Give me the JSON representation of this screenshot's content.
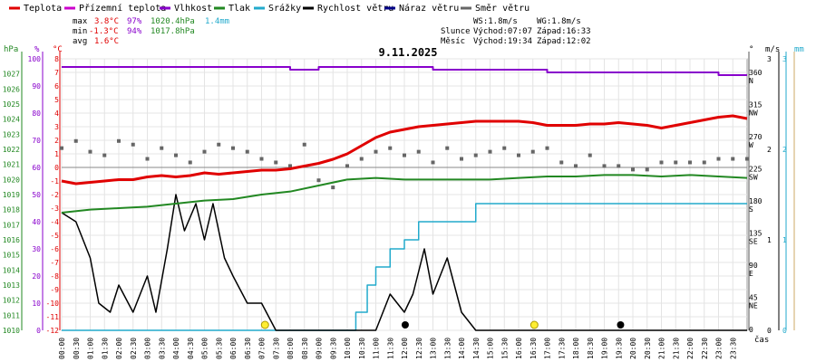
{
  "chart_data": {
    "type": "line",
    "title": "9.11.2025",
    "xlabel": "čas",
    "legend": [
      {
        "label": "Teplota",
        "color": "#e00000"
      },
      {
        "label": "Přízemní teplota",
        "color": "#cc00cc"
      },
      {
        "label": "Vlhkost",
        "color": "#8800cc"
      },
      {
        "label": "Tlak",
        "color": "#228822"
      },
      {
        "label": "Srážky",
        "color": "#22aacc"
      },
      {
        "label": "Rychlost větru",
        "color": "#000000"
      },
      {
        "label": "Náraz větru",
        "color": "#000088"
      },
      {
        "label": "Směr větru",
        "color": "#666666"
      }
    ],
    "stats": {
      "max": {
        "label": "max",
        "temp": "3.8°C",
        "hum": "97%",
        "press": "1020.4hPa",
        "rain": "1.4mm"
      },
      "min": {
        "label": "min",
        "temp": "-1.3°C",
        "hum": "94%",
        "press": "1017.8hPa"
      },
      "avg": {
        "label": "avg",
        "temp": "1.6°C"
      }
    },
    "info": {
      "ws": "WS:1.8m/s",
      "wg": "WG:1.8m/s",
      "sun_label": "Slunce",
      "sunrise": "Východ:07:07",
      "sunset": "Západ:16:33",
      "moon_label": "Měsíc",
      "moonrise": "Východ:19:34",
      "moonset": "Západ:12:02"
    },
    "axes": {
      "press_unit": "hPa",
      "hum_unit": "%",
      "temp_unit": "°C",
      "dir_unit": "°",
      "wind_unit": "m/s",
      "rain_unit": "mm",
      "press_range": [
        1010,
        1028
      ],
      "hum_range": [
        0,
        100
      ],
      "temp_range": [
        -12,
        8
      ],
      "dir_range": [
        0,
        380
      ],
      "wind_range": [
        0,
        3
      ],
      "rain_range": [
        0,
        3
      ],
      "temp_ticks": [
        8,
        7,
        6,
        5,
        4,
        3,
        2,
        1,
        0,
        -1,
        -2,
        -3,
        -4,
        -5,
        -6,
        -7,
        -8,
        -9,
        -10,
        -11,
        -12
      ],
      "hum_ticks": [
        100,
        90,
        80,
        70,
        60,
        50,
        40,
        30,
        20,
        10,
        0
      ],
      "press_ticks": [
        1027,
        1026,
        1025,
        1024,
        1023,
        1022,
        1021,
        1020,
        1019,
        1018,
        1017,
        1016,
        1015,
        1014,
        1013,
        1012,
        1011,
        1010
      ],
      "dir_ticks": [
        {
          "deg": 360,
          "num": "360",
          "lbl": "N"
        },
        {
          "deg": 315,
          "num": "315",
          "lbl": "NW"
        },
        {
          "deg": 270,
          "num": "270",
          "lbl": "W"
        },
        {
          "deg": 225,
          "num": "225",
          "lbl": "SW"
        },
        {
          "deg": 180,
          "num": "180",
          "lbl": "S"
        },
        {
          "deg": 135,
          "num": "135",
          "lbl": "SE"
        },
        {
          "deg": 90,
          "num": "90",
          "lbl": "E"
        },
        {
          "deg": 45,
          "num": "45",
          "lbl": "NE"
        },
        {
          "deg": 0,
          "num": "0",
          "lbl": ""
        }
      ],
      "wind_ticks": [
        3,
        2,
        1,
        0
      ],
      "rain_ticks": [
        3,
        2,
        1,
        0
      ],
      "time_labels": [
        "00:00",
        "00:30",
        "01:00",
        "01:30",
        "02:00",
        "02:30",
        "03:00",
        "03:30",
        "04:00",
        "04:30",
        "05:00",
        "05:30",
        "06:00",
        "06:30",
        "07:00",
        "07:30",
        "08:00",
        "08:30",
        "09:00",
        "09:30",
        "10:00",
        "10:30",
        "11:00",
        "11:30",
        "12:00",
        "12:30",
        "13:00",
        "13:30",
        "14:00",
        "14:30",
        "15:00",
        "15:30",
        "16:00",
        "16:30",
        "17:00",
        "17:30",
        "18:00",
        "18:30",
        "19:00",
        "19:30",
        "20:00",
        "20:30",
        "21:00",
        "21:30",
        "22:00",
        "22:30",
        "23:00",
        "23:30"
      ]
    },
    "series": {
      "temperature": {
        "name": "Teplota",
        "unit": "°C",
        "x": [
          0,
          0.5,
          1,
          1.5,
          2,
          2.5,
          3,
          3.5,
          4,
          4.5,
          5,
          5.5,
          6,
          6.5,
          7,
          7.5,
          8,
          8.5,
          9,
          9.5,
          10,
          10.5,
          11,
          11.5,
          12,
          12.5,
          13,
          13.5,
          14,
          14.5,
          15,
          15.5,
          16,
          16.5,
          17,
          17.5,
          18,
          18.5,
          19,
          19.5,
          20,
          20.5,
          21,
          21.5,
          22,
          22.5,
          23,
          23.5,
          24
        ],
        "y": [
          -1.0,
          -1.2,
          -1.1,
          -1.0,
          -0.9,
          -0.9,
          -0.7,
          -0.6,
          -0.7,
          -0.6,
          -0.4,
          -0.5,
          -0.4,
          -0.3,
          -0.2,
          -0.2,
          -0.1,
          0.1,
          0.3,
          0.6,
          1.0,
          1.6,
          2.2,
          2.6,
          2.8,
          3.0,
          3.1,
          3.2,
          3.3,
          3.4,
          3.4,
          3.4,
          3.4,
          3.3,
          3.1,
          3.1,
          3.1,
          3.2,
          3.2,
          3.3,
          3.2,
          3.1,
          2.9,
          3.1,
          3.3,
          3.5,
          3.7,
          3.8,
          3.6
        ]
      },
      "ground_temperature": {
        "name": "Přízemní teplota",
        "unit": "°C",
        "x": [],
        "y": []
      },
      "humidity": {
        "name": "Vlhkost",
        "unit": "%",
        "x": [
          0,
          1,
          2,
          3,
          4,
          5,
          6,
          7,
          8,
          9,
          10,
          11,
          12,
          13,
          14,
          15,
          16,
          17,
          18,
          19,
          20,
          21,
          22,
          23,
          24
        ],
        "y": [
          97,
          97,
          97,
          97,
          97,
          97,
          97,
          97,
          96,
          97,
          97,
          97,
          97,
          96,
          96,
          96,
          96,
          95,
          95,
          95,
          95,
          95,
          95,
          94,
          94
        ]
      },
      "pressure": {
        "name": "Tlak",
        "unit": "hPa",
        "x": [
          0,
          1,
          2,
          3,
          4,
          5,
          6,
          7,
          8,
          9,
          10,
          11,
          12,
          13,
          14,
          15,
          16,
          17,
          18,
          19,
          20,
          21,
          22,
          23,
          24
        ],
        "y": [
          1017.8,
          1018.0,
          1018.1,
          1018.2,
          1018.4,
          1018.6,
          1018.7,
          1019.0,
          1019.2,
          1019.6,
          1020.0,
          1020.1,
          1020.0,
          1020.0,
          1020.0,
          1020.0,
          1020.1,
          1020.2,
          1020.2,
          1020.3,
          1020.3,
          1020.2,
          1020.3,
          1020.2,
          1020.1
        ]
      },
      "rain": {
        "name": "Srážky",
        "unit": "mm",
        "x": [
          0,
          10,
          10.3,
          10.7,
          11.0,
          11.5,
          12.0,
          12.5,
          13.0,
          13.5,
          14.0,
          14.5,
          15,
          24
        ],
        "y": [
          0,
          0,
          0.2,
          0.5,
          0.7,
          0.9,
          1.0,
          1.2,
          1.2,
          1.2,
          1.2,
          1.4,
          1.4,
          1.4
        ]
      },
      "wind_speed": {
        "name": "Rychlost větru",
        "unit": "m/s",
        "x": [
          0,
          0.5,
          1,
          1.3,
          1.7,
          2,
          2.5,
          3,
          3.3,
          3.7,
          4,
          4.3,
          4.7,
          5,
          5.3,
          5.7,
          6,
          6.5,
          7,
          7.5,
          8,
          8.5,
          9,
          10,
          11,
          11.5,
          12,
          12.3,
          12.7,
          13,
          13.5,
          14,
          14.5,
          15,
          16,
          17,
          18,
          19,
          20,
          21,
          22,
          23,
          24
        ],
        "y": [
          1.3,
          1.2,
          0.8,
          0.3,
          0.2,
          0.5,
          0.2,
          0.6,
          0.2,
          0.9,
          1.5,
          1.1,
          1.4,
          1.0,
          1.4,
          0.8,
          0.6,
          0.3,
          0.3,
          0.0,
          0.0,
          0.0,
          0.0,
          0.0,
          0.0,
          0.4,
          0.2,
          0.4,
          0.9,
          0.4,
          0.8,
          0.2,
          0.0,
          0.0,
          0.0,
          0.0,
          0.0,
          0.0,
          0.0,
          0.0,
          0.0,
          0.0,
          0.0
        ]
      },
      "wind_gust": {
        "name": "Náraz větru",
        "unit": "m/s",
        "x": [],
        "y": []
      },
      "wind_direction": {
        "name": "Směr větru",
        "unit": "°",
        "x": [
          0,
          0.5,
          1,
          1.5,
          2,
          2.5,
          3,
          3.5,
          4,
          4.5,
          5,
          5.5,
          6,
          6.5,
          7,
          7.5,
          8,
          8.5,
          9,
          9.5,
          10,
          10.5,
          11,
          11.5,
          12,
          12.5,
          13,
          13.5,
          14,
          14.5,
          15,
          15.5,
          16,
          16.5,
          17,
          17.5,
          18,
          18.5,
          19,
          19.5,
          20,
          20.5,
          21,
          21.5,
          22,
          22.5,
          23,
          23.5,
          24
        ],
        "y": [
          255,
          265,
          250,
          245,
          265,
          260,
          240,
          255,
          245,
          235,
          250,
          260,
          255,
          250,
          240,
          235,
          230,
          260,
          210,
          200,
          230,
          240,
          250,
          255,
          245,
          250,
          235,
          255,
          240,
          245,
          250,
          255,
          245,
          250,
          255,
          235,
          230,
          245,
          230,
          230,
          225,
          225,
          235,
          235,
          235,
          235,
          240,
          240,
          240
        ]
      }
    },
    "markers": [
      {
        "type": "sun",
        "label": "sunrise",
        "hour": 7.12,
        "color": "#ffee33"
      },
      {
        "type": "moon",
        "label": "moonset",
        "hour": 12.03,
        "color": "#000000"
      },
      {
        "type": "sun",
        "label": "sunset",
        "hour": 16.55,
        "color": "#ffee33"
      },
      {
        "type": "moon",
        "label": "moonrise",
        "hour": 19.57,
        "color": "#000000"
      }
    ]
  }
}
